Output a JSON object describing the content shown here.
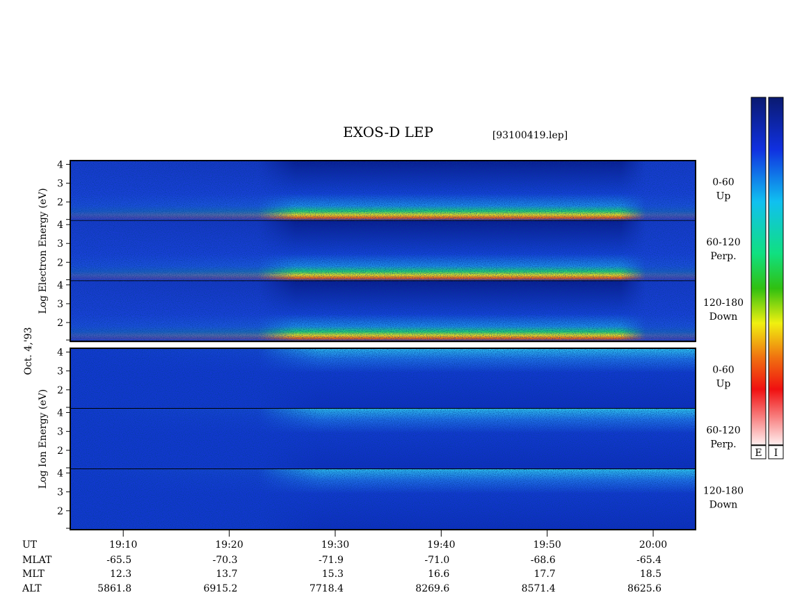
{
  "chart_data": {
    "type": "spectrogram",
    "title": "EXOS-D LEP",
    "file": "[93100419.lep]",
    "date": "Oct. 4,'93",
    "xlim": [
      1145,
      1204
    ],
    "xticks": [
      {
        "value": 1150,
        "label": "19:10"
      },
      {
        "value": 1160,
        "label": "19:20"
      },
      {
        "value": 1170,
        "label": "19:30"
      },
      {
        "value": 1180,
        "label": "19:40"
      },
      {
        "value": 1190,
        "label": "19:50"
      },
      {
        "value": 1200,
        "label": "20:00"
      }
    ],
    "ephemeris": [
      {
        "name": "UT"
      },
      {
        "name": "MLAT",
        "values": [
          "-65.5",
          "-70.3",
          "-71.9",
          "-71.0",
          "-68.6",
          "-65.4"
        ]
      },
      {
        "name": "MLT",
        "values": [
          "12.3",
          "13.7",
          "15.3",
          "16.6",
          "17.7",
          "18.5"
        ]
      },
      {
        "name": "ALT",
        "values": [
          "5861.8",
          "6915.2",
          "7718.4",
          "8269.6",
          "8571.4",
          "8625.6"
        ]
      }
    ],
    "groups": [
      {
        "ylabel": "Log Electron Energy (eV)",
        "ylim": [
          1,
          4.2
        ],
        "yticks": [
          2,
          3,
          4
        ],
        "panels": [
          {
            "label": [
              "0-60",
              "Up"
            ]
          },
          {
            "label": [
              "60-120",
              "Perp."
            ]
          },
          {
            "label": [
              "120-180",
              "Down"
            ]
          }
        ]
      },
      {
        "ylabel": "Log Ion Energy (eV)",
        "ylim": [
          1,
          4.2
        ],
        "yticks": [
          2,
          3,
          4
        ],
        "panels": [
          {
            "label": [
              "0-60",
              "Up"
            ]
          },
          {
            "label": [
              "60-120",
              "Perp."
            ]
          },
          {
            "label": [
              "120-180",
              "Down"
            ]
          }
        ]
      }
    ],
    "colorbars": [
      "E",
      "I"
    ]
  }
}
